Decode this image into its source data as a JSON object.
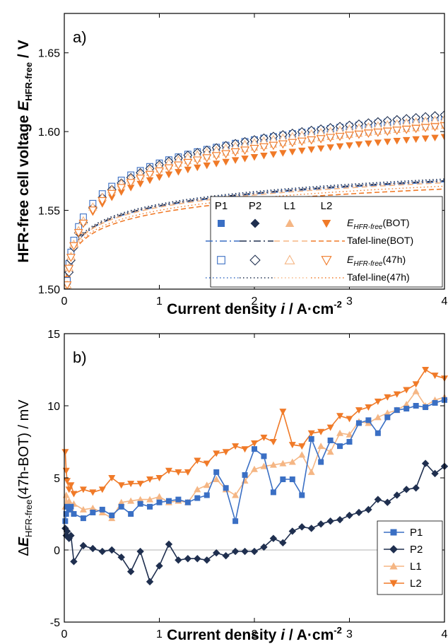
{
  "colors": {
    "P1": "#3a6fc4",
    "P2": "#1f2f4f",
    "L1": "#f5b684",
    "L2": "#f07a28",
    "zero_line": "#b0b0b0"
  },
  "chart_data": [
    {
      "type": "scatter",
      "panel_label": "a)",
      "xlabel": {
        "prefix": "Current density ",
        "var": "i",
        "mid": " / A·cm",
        "sup": "-2"
      },
      "ylabel": {
        "prefix": "HFR-free cell voltage ",
        "var": "E",
        "sub": "HFR-free",
        "suffix": " / V"
      },
      "xlim": [
        0,
        4
      ],
      "ylim": [
        1.5,
        1.675
      ],
      "x_ticks": [
        0,
        1,
        2,
        3,
        4
      ],
      "y_ticks": [
        1.5,
        1.55,
        1.6,
        1.65
      ],
      "x_tick_labels": [
        "0",
        "1",
        "2",
        "3",
        "4"
      ],
      "y_tick_labels": [
        "1.50",
        "1.55",
        "1.60",
        "1.65"
      ],
      "legend": {
        "position": "bottom-right",
        "column_headers": [
          "P1",
          "P2",
          "L1",
          "L2"
        ],
        "row_labels": {
          "bot_var": "E",
          "bot_sub": "HFR-free",
          "bot_tail": "(BOT)",
          "tafel_bot": "Tafel-line(BOT)",
          "h47_var": "E",
          "h47_sub": "HFR-free",
          "h47_tail": "(47h)",
          "tafel_47h": "Tafel-line(47h)"
        }
      },
      "curves": {
        "x": [
          0.01,
          0.02,
          0.03,
          0.05,
          0.07,
          0.1,
          0.15,
          0.2,
          0.3,
          0.4,
          0.5,
          0.6,
          0.7,
          0.8,
          0.9,
          1.0,
          1.1,
          1.2,
          1.3,
          1.4,
          1.5,
          1.6,
          1.7,
          1.8,
          1.9,
          2.0,
          2.1,
          2.2,
          2.3,
          2.4,
          2.5,
          2.6,
          2.7,
          2.8,
          2.9,
          3.0,
          3.1,
          3.2,
          3.3,
          3.4,
          3.5,
          3.6,
          3.7,
          3.8,
          3.9,
          4.0
        ],
        "bot_series": [
          {
            "name": "P1",
            "V1": 1.577,
            "slope": 0.0465,
            "marker": "square"
          },
          {
            "name": "P2",
            "V1": 1.578,
            "slope": 0.049,
            "marker": "diamond"
          },
          {
            "name": "L1",
            "V1": 1.576,
            "slope": 0.046,
            "marker": "triangle-up"
          },
          {
            "name": "L2",
            "V1": 1.571,
            "slope": 0.0425,
            "marker": "triangle-down"
          }
        ],
        "h47_series": [
          {
            "name": "P1",
            "V1": 1.58,
            "slope": 0.049,
            "marker": "square"
          },
          {
            "name": "P2",
            "V1": 1.579,
            "slope": 0.0525,
            "marker": "diamond"
          },
          {
            "name": "L1",
            "V1": 1.578,
            "slope": 0.0495,
            "marker": "triangle-up"
          },
          {
            "name": "L2",
            "V1": 1.575,
            "slope": 0.0475,
            "marker": "triangle-down"
          }
        ],
        "tafel_bot": [
          {
            "name": "P1",
            "V1": 1.5525,
            "slope": 0.026
          },
          {
            "name": "P2",
            "V1": 1.553,
            "slope": 0.0262
          },
          {
            "name": "L1",
            "V1": 1.552,
            "slope": 0.0258
          },
          {
            "name": "L2",
            "V1": 1.5485,
            "slope": 0.025
          }
        ],
        "tafel_47h": [
          {
            "name": "P1",
            "V1": 1.5535,
            "slope": 0.0262
          },
          {
            "name": "P2",
            "V1": 1.554,
            "slope": 0.0264
          },
          {
            "name": "L1",
            "V1": 1.553,
            "slope": 0.026
          },
          {
            "name": "L2",
            "V1": 1.55,
            "slope": 0.0255
          }
        ]
      }
    },
    {
      "type": "line",
      "panel_label": "b)",
      "xlabel": {
        "prefix": "Current density ",
        "var": "i",
        "mid": " / A·cm",
        "sup": "-2"
      },
      "ylabel": {
        "delta": "Δ",
        "var": "E",
        "sub": "HFR-free",
        "suffix": "(47h-BOT) / mV"
      },
      "xlim": [
        0,
        4
      ],
      "ylim": [
        -5,
        15
      ],
      "x_ticks": [
        0,
        1,
        2,
        3,
        4
      ],
      "y_ticks": [
        -5,
        0,
        5,
        10,
        15
      ],
      "x_tick_labels": [
        "0",
        "1",
        "2",
        "3",
        "4"
      ],
      "y_tick_labels": [
        "-5",
        "0",
        "5",
        "10",
        "15"
      ],
      "zero_line": true,
      "legend": {
        "position": "bottom-right",
        "entries": [
          "P1",
          "P2",
          "L1",
          "L2"
        ]
      },
      "x": [
        0.01,
        0.02,
        0.03,
        0.05,
        0.07,
        0.1,
        0.2,
        0.3,
        0.4,
        0.5,
        0.6,
        0.7,
        0.8,
        0.9,
        1.0,
        1.1,
        1.2,
        1.3,
        1.4,
        1.5,
        1.6,
        1.7,
        1.8,
        1.9,
        2.0,
        2.1,
        2.2,
        2.3,
        2.4,
        2.5,
        2.6,
        2.7,
        2.8,
        2.9,
        3.0,
        3.1,
        3.2,
        3.3,
        3.4,
        3.5,
        3.6,
        3.7,
        3.8,
        3.9,
        4.0
      ],
      "series": [
        {
          "name": "P1",
          "marker": "square",
          "values": [
            2.0,
            2.5,
            3.0,
            2.8,
            3.0,
            2.5,
            2.2,
            2.6,
            2.8,
            2.4,
            3.0,
            2.5,
            3.2,
            3.0,
            3.3,
            3.4,
            3.5,
            3.3,
            3.6,
            3.8,
            5.4,
            4.3,
            2.0,
            5.2,
            7.0,
            6.5,
            4.0,
            4.9,
            4.9,
            3.8,
            7.7,
            6.1,
            7.6,
            7.2,
            7.5,
            8.8,
            9.0,
            8.1,
            9.2,
            9.7,
            9.8,
            10.0,
            9.9,
            10.2,
            10.4
          ]
        },
        {
          "name": "P2",
          "marker": "diamond",
          "values": [
            1.5,
            1.0,
            1.3,
            0.8,
            1.0,
            -0.8,
            0.3,
            0.1,
            -0.1,
            0.0,
            -0.5,
            -1.5,
            -0.1,
            -2.2,
            -1.1,
            0.4,
            -0.7,
            -0.6,
            -0.6,
            -0.7,
            -0.2,
            -0.4,
            -0.1,
            -0.1,
            -0.1,
            0.2,
            0.8,
            0.5,
            1.3,
            1.6,
            1.5,
            1.8,
            2.0,
            2.1,
            2.4,
            2.6,
            2.8,
            3.5,
            3.3,
            3.8,
            4.2,
            4.3,
            6.0,
            5.3,
            5.8
          ]
        },
        {
          "name": "L1",
          "marker": "triangle-up",
          "values": [
            3.0,
            3.8,
            3.0,
            3.4,
            2.8,
            3.2,
            2.8,
            2.9,
            2.6,
            2.2,
            3.3,
            3.4,
            3.5,
            3.5,
            3.7,
            3.3,
            3.4,
            3.3,
            4.2,
            4.5,
            4.9,
            4.2,
            3.8,
            4.8,
            5.6,
            5.8,
            5.9,
            6.0,
            6.1,
            6.6,
            5.4,
            7.2,
            6.8,
            8.1,
            8.0,
            8.9,
            8.8,
            9.2,
            9.5,
            9.7,
            10.1,
            11.0,
            10.0,
            10.4,
            10.6
          ]
        },
        {
          "name": "L2",
          "marker": "triangle-down",
          "values": [
            6.8,
            5.5,
            4.8,
            4.2,
            4.5,
            3.9,
            4.2,
            4.0,
            4.2,
            5.0,
            4.5,
            4.6,
            4.6,
            4.9,
            5.0,
            5.5,
            5.4,
            5.4,
            6.2,
            6.0,
            6.7,
            6.8,
            7.2,
            7.0,
            7.4,
            7.8,
            7.5,
            9.6,
            7.3,
            7.2,
            8.1,
            8.2,
            8.5,
            9.3,
            9.1,
            9.7,
            9.9,
            10.3,
            10.6,
            10.8,
            11.1,
            11.5,
            12.5,
            12.1,
            11.9
          ]
        }
      ]
    }
  ]
}
